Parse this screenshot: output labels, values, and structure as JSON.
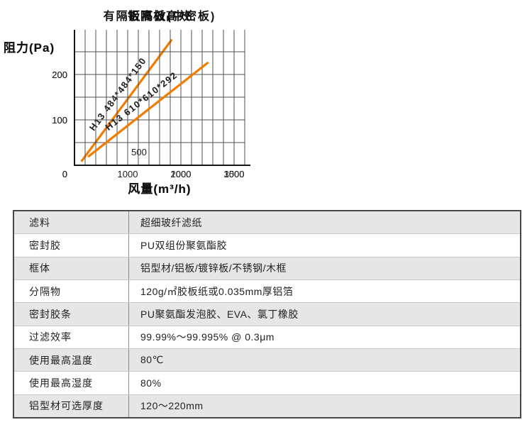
{
  "colors": {
    "line_orange": "#f07d00",
    "grid": "#4f4f4f",
    "axis": "#161616",
    "row_stripe": "#e6e6e6",
    "table_border": "#474747"
  },
  "chart_data": [
    {
      "type": "line",
      "title": "有隔板高效(中密板)",
      "ylabel": "阻力(Pa)",
      "xlabel": "风量(m³/h)",
      "xlim": [
        0,
        1600
      ],
      "ylim": [
        0,
        298
      ],
      "x_grid_step": 100,
      "y_grid_step": 50,
      "y_grid_max": 250,
      "grid": true,
      "series": [
        {
          "name": "H13 484*484*150",
          "color": "#f07d00",
          "x": [
            70,
            910
          ],
          "y": [
            10,
            275
          ]
        }
      ],
      "xticks": [
        {
          "value": 500,
          "label": "500",
          "inside": true
        },
        {
          "value": 1000,
          "label": "1000"
        },
        {
          "value": 1500,
          "label": "1500"
        }
      ],
      "yticks": [
        {
          "value": 0,
          "label": "0"
        },
        {
          "value": 100,
          "label": "100"
        },
        {
          "value": 200,
          "label": "200"
        }
      ]
    },
    {
      "type": "line",
      "title": "铝隔板高效",
      "ylabel": "阻力(Pa)",
      "xlabel": "风量(m³/h)",
      "xlim": [
        0,
        3200
      ],
      "ylim": [
        0,
        298
      ],
      "x_grid_step": 200,
      "y_grid_step": 50,
      "y_grid_max": 250,
      "grid": true,
      "series": [
        {
          "name": "H13 610*610*292",
          "color": "#f07d00",
          "x": [
            270,
            2500
          ],
          "y": [
            20,
            225
          ]
        }
      ],
      "xticks": [
        {
          "value": 1000,
          "label": "1000"
        },
        {
          "value": 2000,
          "label": "2000"
        },
        {
          "value": 3000,
          "label": "3000"
        }
      ],
      "yticks": [
        {
          "value": 0,
          "label": "0"
        },
        {
          "value": 100,
          "label": "100"
        },
        {
          "value": 200,
          "label": "200"
        }
      ]
    }
  ],
  "table": {
    "rows": [
      {
        "label": "滤料",
        "value": "超细玻纤滤纸"
      },
      {
        "label": "密封胶",
        "value": "PU双组份聚氨酯胶"
      },
      {
        "label": "框体",
        "value": "铝型材/铝板/镀锌板/不锈钢/木框"
      },
      {
        "label": "分隔物",
        "value": "120g/㎡胶板纸或0.035mm厚铝箔"
      },
      {
        "label": "密封胶条",
        "value": "PU聚氨酯发泡胶、EVA、氯丁橡胶"
      },
      {
        "label": "过滤效率",
        "value": "99.99%～99.995% @ 0.3μm"
      },
      {
        "label": "使用最高温度",
        "value": "80℃"
      },
      {
        "label": "使用最高湿度",
        "value": "80%"
      },
      {
        "label": "铝型材可选厚度",
        "value": "120～220mm"
      }
    ]
  }
}
